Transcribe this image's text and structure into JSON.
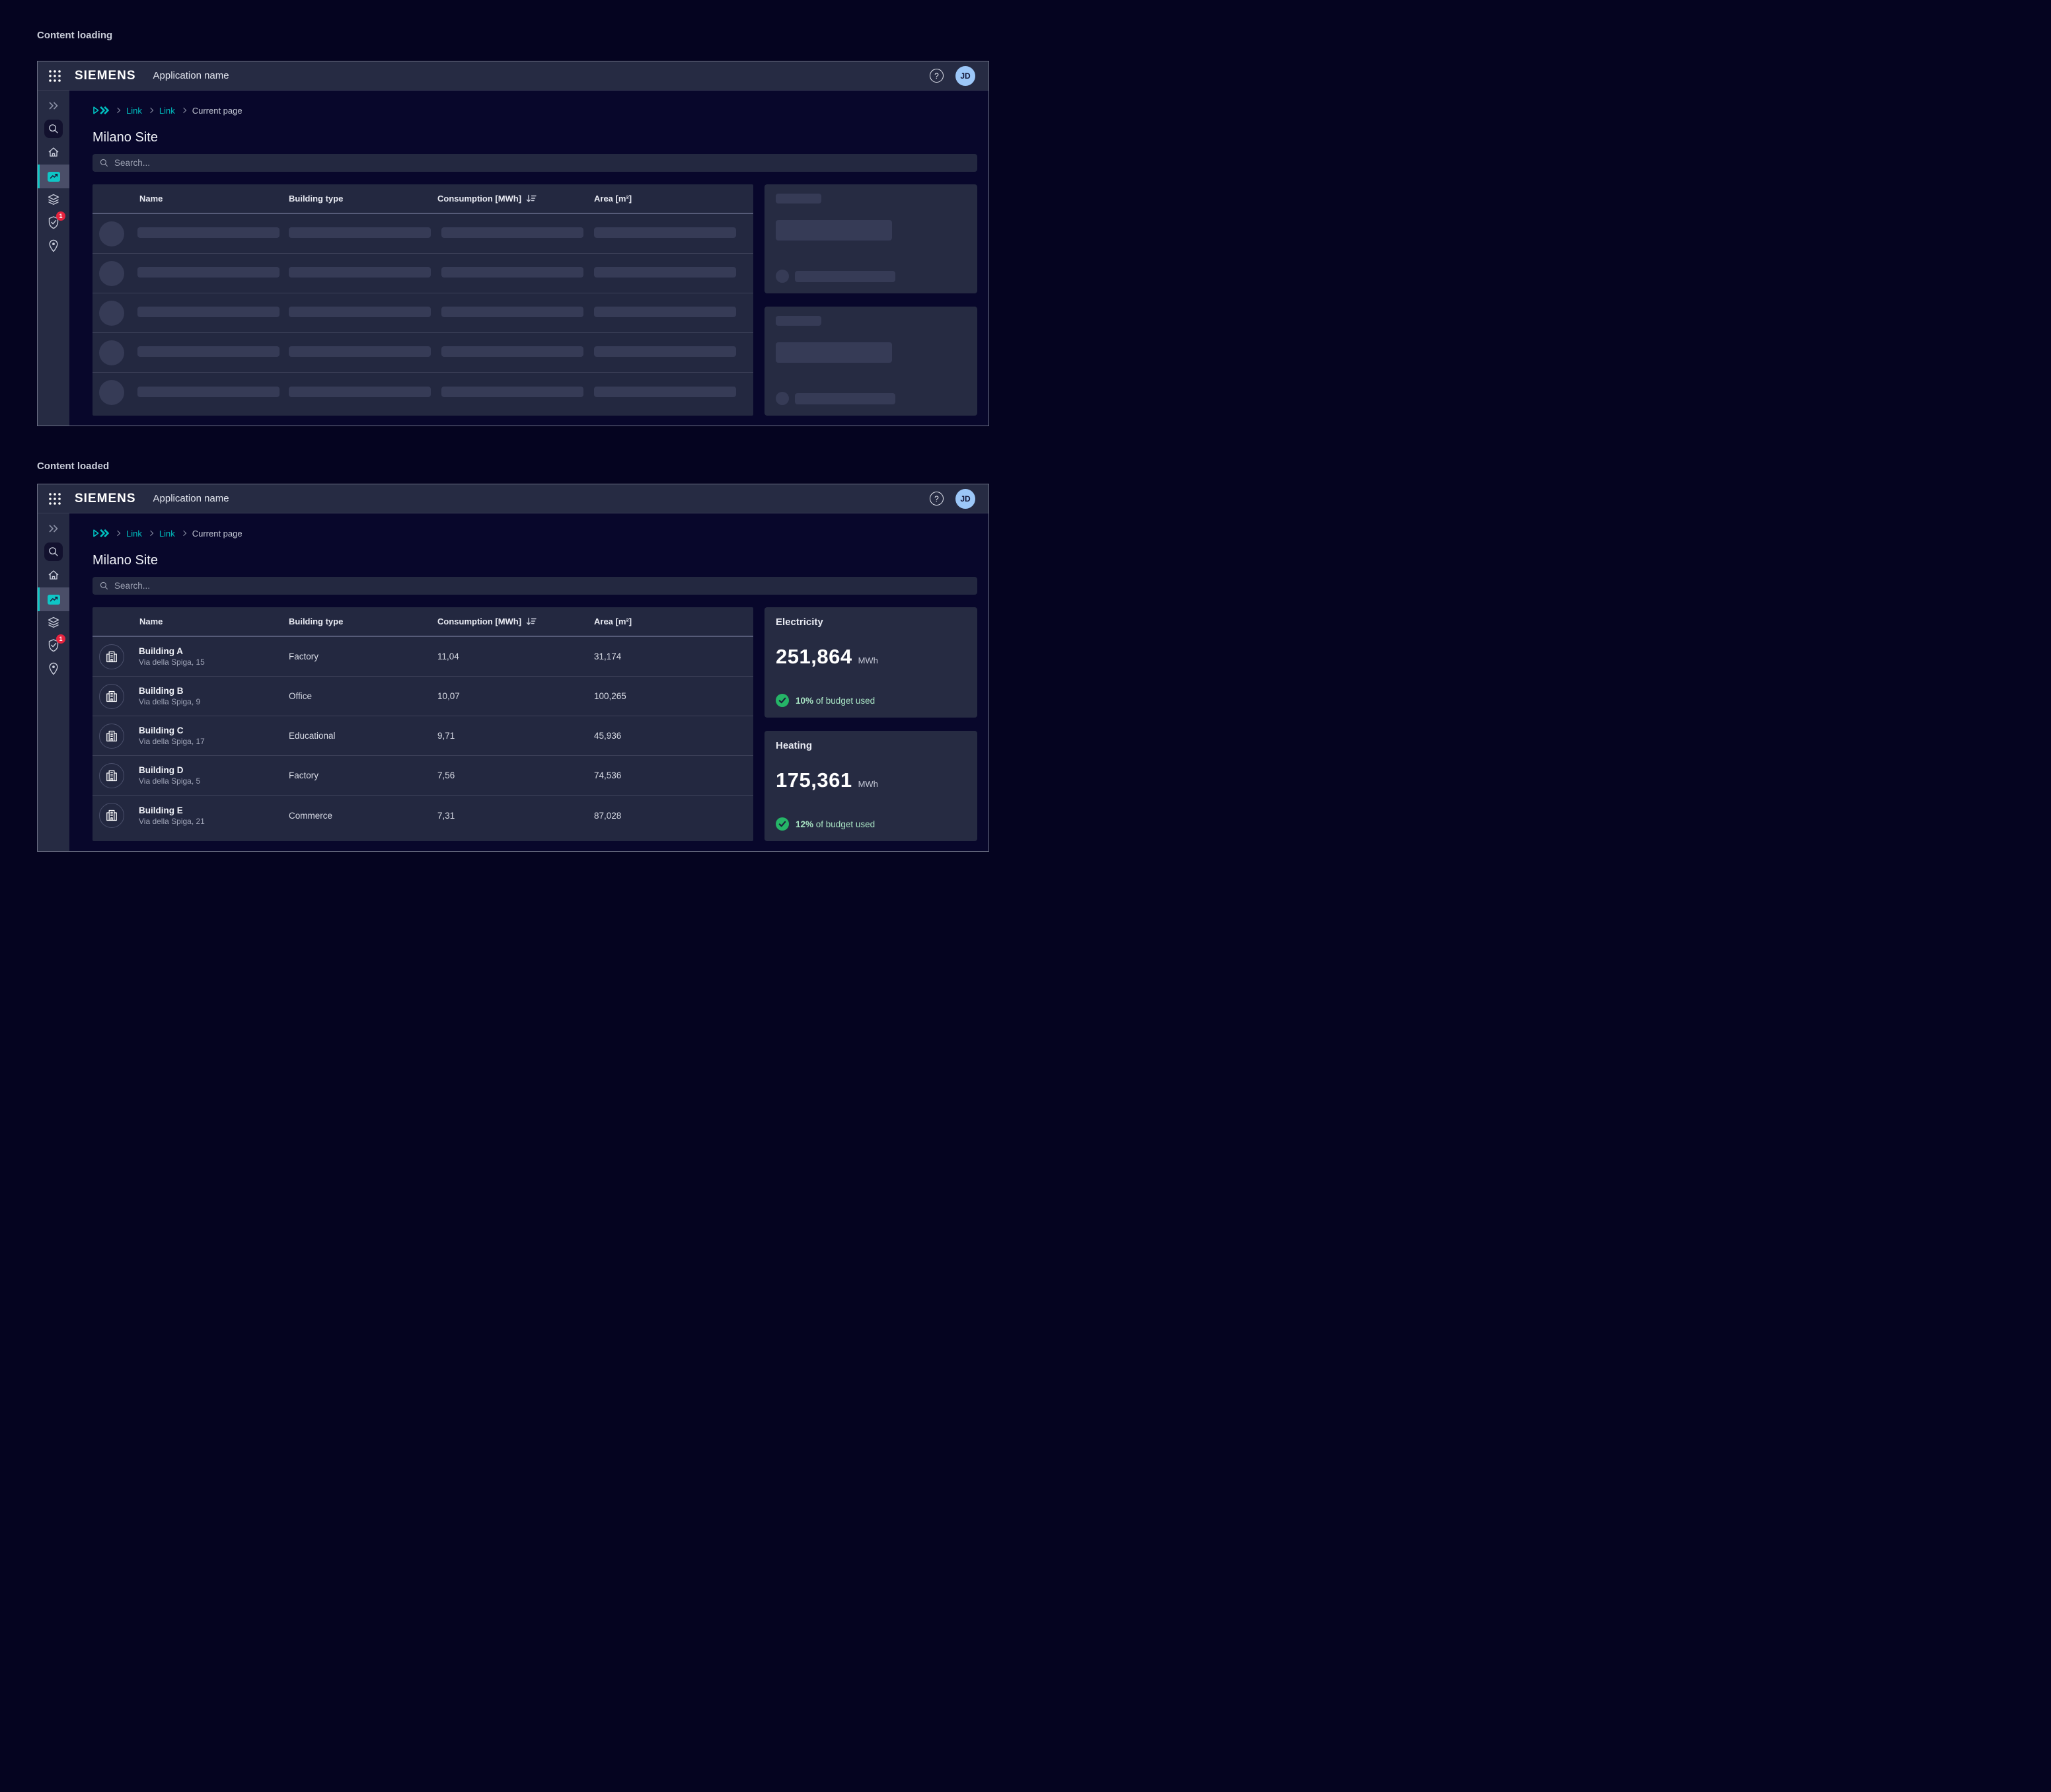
{
  "page": {
    "loading_label": "Content loading",
    "loaded_label": "Content loaded"
  },
  "header": {
    "brand": "SIEMENS",
    "app_name": "Application name",
    "avatar_initials": "JD",
    "help_glyph": "?"
  },
  "sidebar": {
    "notification_count": "1",
    "icons": [
      "collapse-double-chevron",
      "search",
      "home",
      "trend-chart-active",
      "layers",
      "shield-check",
      "location-pin"
    ]
  },
  "breadcrumbs": {
    "root_icon": "siemens-play-chevrons",
    "links": [
      "Link",
      "Link"
    ],
    "current": "Current page"
  },
  "content": {
    "title": "Milano Site",
    "search_placeholder": "Search..."
  },
  "table": {
    "columns": [
      "Name",
      "Building type",
      "Consumption [MWh]",
      "Area [m²]"
    ],
    "sorted_column": "Consumption [MWh]",
    "sort_direction": "descending",
    "rows": [
      {
        "name": "Building A",
        "address": "Via della Spiga, 15",
        "type": "Factory",
        "consumption": "11,04",
        "area": "31,174"
      },
      {
        "name": "Building B",
        "address": "Via della Spiga, 9",
        "type": "Office",
        "consumption": "10,07",
        "area": "100,265"
      },
      {
        "name": "Building C",
        "address": "Via della Spiga, 17",
        "type": "Educational",
        "consumption": "9,71",
        "area": "45,936"
      },
      {
        "name": "Building D",
        "address": "Via della Spiga, 5",
        "type": "Factory",
        "consumption": "7,56",
        "area": "74,536"
      },
      {
        "name": "Building E",
        "address": "Via della Spiga, 21",
        "type": "Commerce",
        "consumption": "7,31",
        "area": "87,028"
      }
    ]
  },
  "cards": [
    {
      "title": "Electricity",
      "value": "251,864",
      "unit": "MWh",
      "status_percent": "10%",
      "status_rest": " of budget used"
    },
    {
      "title": "Heating",
      "value": "175,361",
      "unit": "MWh",
      "status_percent": "12%",
      "status_rest": " of budget used"
    }
  ],
  "colors": {
    "accent_teal": "#0FC6C6",
    "link_teal": "#00C1C1",
    "success_green": "#25B567",
    "success_text": "#A9E4C4",
    "badge_red": "#E5243F",
    "avatar_blue": "#9CC7F8",
    "surface": "#232840",
    "chrome": "#262B43"
  }
}
